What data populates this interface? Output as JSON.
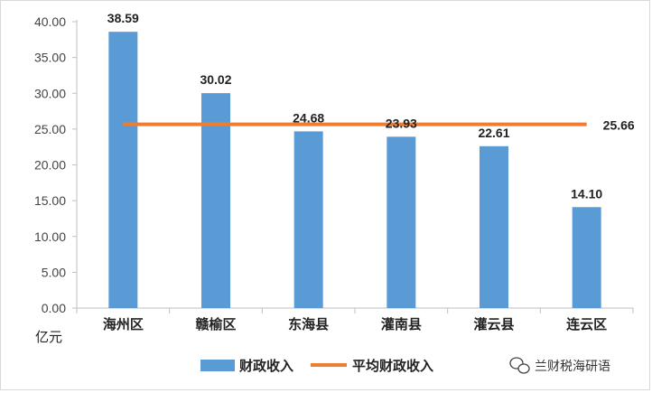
{
  "chart_data": {
    "type": "bar",
    "categories": [
      "海州区",
      "赣榆区",
      "东海县",
      "灌南县",
      "灌云县",
      "连云区"
    ],
    "series": [
      {
        "name": "财政收入",
        "type": "bar",
        "values": [
          38.59,
          30.02,
          24.68,
          23.93,
          22.61,
          14.1
        ],
        "labels": [
          "38.59",
          "30.02",
          "24.68",
          "23.93",
          "22.61",
          "14.10"
        ]
      },
      {
        "name": "平均财政收入",
        "type": "line",
        "value": 25.66,
        "label": "25.66"
      }
    ],
    "ylim": [
      0,
      40
    ],
    "yticks": [
      "0.00",
      "5.00",
      "10.00",
      "15.00",
      "20.00",
      "25.00",
      "30.00",
      "35.00",
      "40.00"
    ],
    "ylabel": "",
    "xlabel": "",
    "unit": "亿元",
    "legend_position": "bottom",
    "grid": false
  },
  "colors": {
    "bar": "#5b9bd5",
    "line": "#ed7d31",
    "axis": "#bfbfbf"
  },
  "watermark": {
    "text": "兰财税海研语",
    "icon": "wechat-icon"
  }
}
